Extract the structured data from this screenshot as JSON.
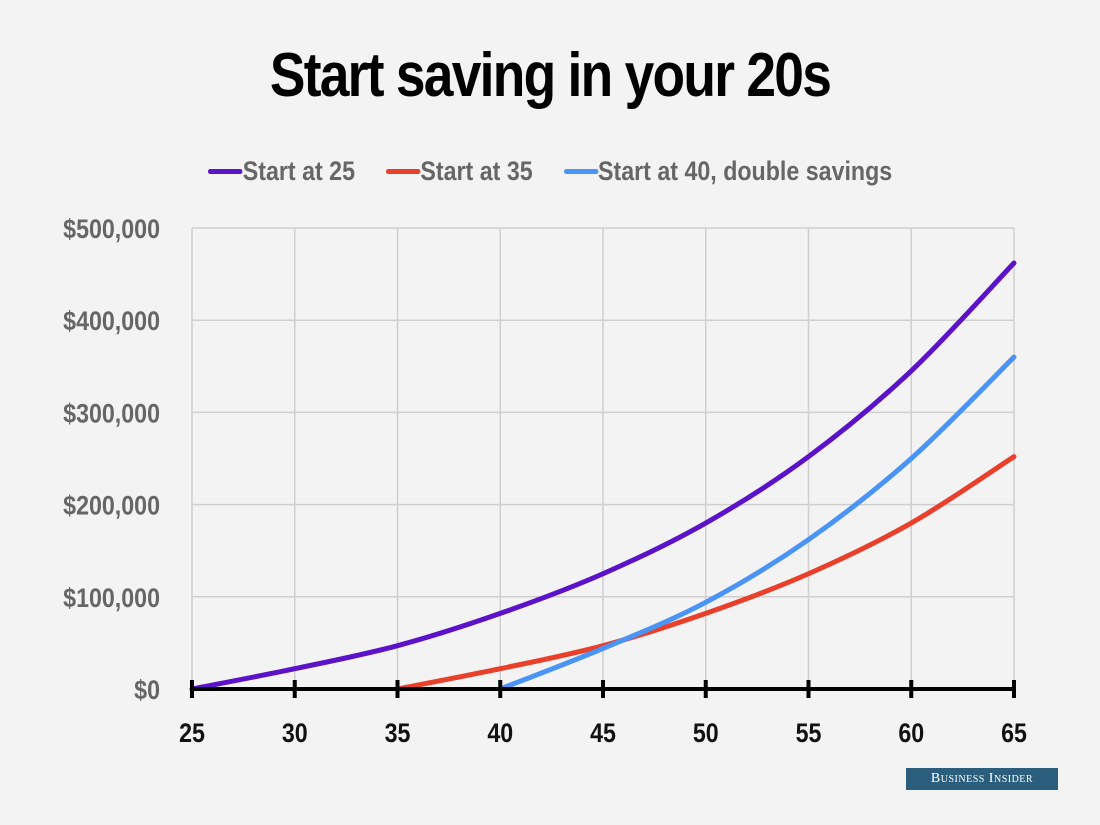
{
  "title": "Start saving in your 20s",
  "legend": [
    {
      "label": "Start at 25",
      "color": "#5b12c8"
    },
    {
      "label": "Start at 35",
      "color": "#e8402a"
    },
    {
      "label": "Start at 40, double savings",
      "color": "#4a94f5"
    }
  ],
  "y_tick_labels": [
    "$0",
    "$100,000",
    "$200,000",
    "$300,000",
    "$400,000",
    "$500,000"
  ],
  "x_tick_labels": [
    "25",
    "30",
    "35",
    "40",
    "45",
    "50",
    "55",
    "60",
    "65"
  ],
  "branding": "Business Insider",
  "chart_data": {
    "type": "line",
    "title": "Start saving in your 20s",
    "xlabel": "",
    "ylabel": "",
    "x": [
      25,
      30,
      35,
      40,
      45,
      50,
      55,
      60,
      65
    ],
    "xlim": [
      25,
      65
    ],
    "ylim": [
      0,
      500000
    ],
    "yticks": [
      0,
      100000,
      200000,
      300000,
      400000,
      500000
    ],
    "grid": true,
    "legend_position": "top",
    "series": [
      {
        "name": "Start at 25",
        "color": "#5b12c8",
        "x": [
          25,
          30,
          35,
          40,
          45,
          50,
          55,
          60,
          65
        ],
        "values": [
          0,
          22000,
          47000,
          82000,
          125000,
          180000,
          252000,
          345000,
          462000
        ]
      },
      {
        "name": "Start at 35",
        "color": "#e8402a",
        "x": [
          35,
          40,
          45,
          50,
          55,
          60,
          65
        ],
        "values": [
          0,
          22000,
          47000,
          82000,
          125000,
          180000,
          252000
        ]
      },
      {
        "name": "Start at 40, double savings",
        "color": "#4a94f5",
        "x": [
          40,
          45,
          50,
          55,
          60,
          65
        ],
        "values": [
          0,
          44000,
          94000,
          162000,
          250000,
          360000
        ]
      }
    ]
  }
}
